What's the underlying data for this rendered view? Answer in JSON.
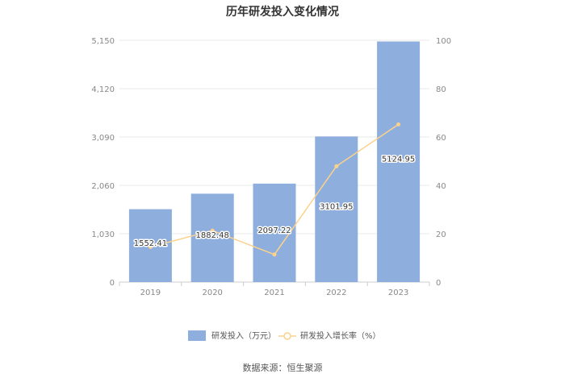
{
  "chart_data": {
    "type": "bar",
    "title": "历年研发投入变化情况",
    "categories": [
      "2019",
      "2020",
      "2021",
      "2022",
      "2023"
    ],
    "series": [
      {
        "name": "研发投入（万元）",
        "type": "bar",
        "axis": "left",
        "values": [
          1552.41,
          1882.48,
          2097.22,
          3101.95,
          5124.95
        ],
        "labels": [
          "1552.41",
          "1882.48",
          "2097.22",
          "3101.95",
          "5124.95"
        ],
        "color": "#8eaedd"
      },
      {
        "name": "研发投入增长率（%）",
        "type": "line",
        "axis": "right",
        "values": [
          14.5,
          21.3,
          11.4,
          47.9,
          65.2
        ],
        "color": "#fbd28b"
      }
    ],
    "y_left": {
      "min": 0,
      "max": 5150,
      "ticks": [
        "0",
        "1,030",
        "2,060",
        "3,090",
        "4,120",
        "5,150"
      ]
    },
    "y_right": {
      "min": 0,
      "max": 100,
      "ticks": [
        "0",
        "20",
        "40",
        "60",
        "80",
        "100"
      ]
    },
    "grid": true,
    "legend_position": "bottom"
  },
  "source": "数据来源：恒生聚源"
}
